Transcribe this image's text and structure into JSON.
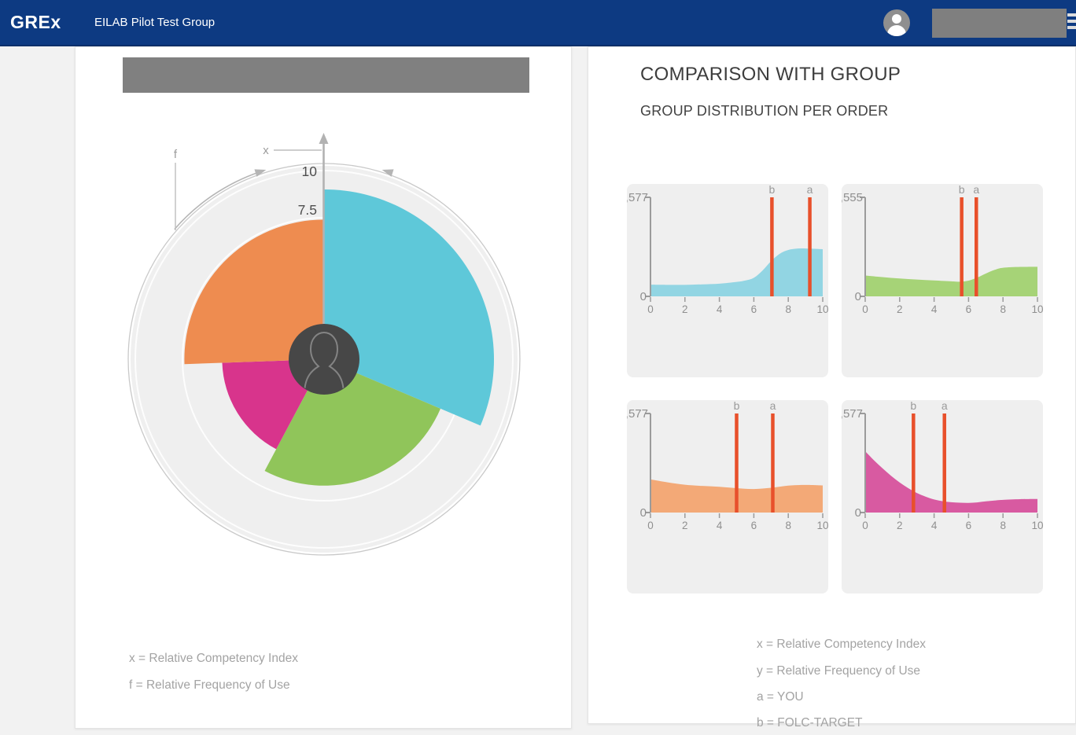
{
  "navbar": {
    "brand": "GREx",
    "group_name": "EILAB Pilot Test Group",
    "bg_color": "#0d3a82"
  },
  "left_panel": {
    "legend": [
      {
        "label": "x = Relative Competency Index"
      },
      {
        "label": "f = Relative Frequency of Use"
      }
    ]
  },
  "right_panel": {
    "title": "COMPARISON WITH GROUP",
    "subtitle": "GROUP DISTRIBUTION PER ORDER",
    "legend": [
      {
        "label": "x = Relative Competency Index"
      },
      {
        "label": "y = Relative Frequency of Use"
      },
      {
        "label": "a = YOU"
      },
      {
        "label": "b = FOLC-TARGET"
      }
    ]
  },
  "chart_data": [
    {
      "type": "polar-area",
      "name": "competency-rose",
      "axis": {
        "x_label": "x",
        "f_label": "f",
        "tick_labels": [
          "10",
          "7.5"
        ],
        "tick_values": [
          10,
          7.5
        ],
        "max": 10
      },
      "note": "radius = x (Relative Competency Index), angular width = f (Relative Frequency of Use)",
      "segments": [
        {
          "name": "cyan-order",
          "color": "#5ec8d9",
          "start_deg": 0,
          "end_deg": 113,
          "value": 9.0
        },
        {
          "name": "green-order",
          "color": "#90c55a",
          "start_deg": 113,
          "end_deg": 208,
          "value": 6.7
        },
        {
          "name": "magenta-order",
          "color": "#d8348c",
          "start_deg": 208,
          "end_deg": 268,
          "value": 5.4
        },
        {
          "name": "orange-order",
          "color": "#ee8c50",
          "start_deg": 268,
          "end_deg": 360,
          "value": 7.4
        }
      ],
      "colors": {
        "disc": "#efefef",
        "outer_ring": "#c9c9c9",
        "axis": "#b2b2b2",
        "tick_text": "#4f4f4f",
        "label_text": "#9c9c9c",
        "avatar_bg": "#474747",
        "avatar_stroke": "#848484"
      }
    },
    {
      "type": "area",
      "name": "distribution-cyan",
      "color": "#92d5e3",
      "marker_color": "#e8502b",
      "ymax": 577,
      "ymax_label": ",577",
      "y0_label": "0",
      "x_ticks": [
        0,
        2,
        4,
        6,
        8,
        10
      ],
      "points": [
        [
          0,
          68
        ],
        [
          1,
          67
        ],
        [
          2,
          67
        ],
        [
          3,
          70
        ],
        [
          4,
          74
        ],
        [
          5,
          84
        ],
        [
          5.5,
          92
        ],
        [
          6,
          108
        ],
        [
          6.5,
          150
        ],
        [
          7,
          205
        ],
        [
          7.5,
          248
        ],
        [
          8,
          270
        ],
        [
          8.5,
          278
        ],
        [
          9,
          279
        ],
        [
          10,
          275
        ]
      ],
      "markers": {
        "b": 7.05,
        "a": 9.25
      }
    },
    {
      "type": "area",
      "name": "distribution-green",
      "color": "#a6d377",
      "marker_color": "#e8502b",
      "ymax": 555,
      "ymax_label": ",555",
      "y0_label": "0",
      "x_ticks": [
        0,
        2,
        4,
        6,
        8,
        10
      ],
      "points": [
        [
          0,
          117
        ],
        [
          1,
          108
        ],
        [
          2,
          100
        ],
        [
          3,
          94
        ],
        [
          4,
          89
        ],
        [
          5,
          84
        ],
        [
          5.5,
          82
        ],
        [
          6,
          88
        ],
        [
          6.5,
          105
        ],
        [
          7,
          128
        ],
        [
          7.5,
          148
        ],
        [
          8,
          160
        ],
        [
          9,
          165
        ],
        [
          10,
          166
        ]
      ],
      "markers": {
        "b": 5.6,
        "a": 6.45
      }
    },
    {
      "type": "area",
      "name": "distribution-orange",
      "color": "#f3a977",
      "marker_color": "#e8502b",
      "ymax": 577,
      "ymax_label": ",577",
      "y0_label": "0",
      "x_ticks": [
        0,
        2,
        4,
        6,
        8,
        10
      ],
      "points": [
        [
          0,
          193
        ],
        [
          1,
          176
        ],
        [
          2,
          162
        ],
        [
          3,
          155
        ],
        [
          4,
          150
        ],
        [
          5,
          142
        ],
        [
          6,
          137
        ],
        [
          7,
          144
        ],
        [
          8,
          157
        ],
        [
          9,
          161
        ],
        [
          10,
          158
        ]
      ],
      "markers": {
        "b": 5.0,
        "a": 7.1
      }
    },
    {
      "type": "area",
      "name": "distribution-magenta",
      "color": "#d85aa1",
      "marker_color": "#e8502b",
      "ymax": 577,
      "ymax_label": ",577",
      "y0_label": "0",
      "x_ticks": [
        0,
        2,
        4,
        6,
        8,
        10
      ],
      "points": [
        [
          0,
          357
        ],
        [
          0.5,
          305
        ],
        [
          1,
          258
        ],
        [
          1.5,
          214
        ],
        [
          2,
          175
        ],
        [
          2.5,
          142
        ],
        [
          3,
          114
        ],
        [
          3.5,
          93
        ],
        [
          4,
          76
        ],
        [
          4.5,
          66
        ],
        [
          5,
          60
        ],
        [
          5.5,
          57
        ],
        [
          6,
          56
        ],
        [
          6.5,
          59
        ],
        [
          7,
          65
        ],
        [
          7.5,
          70
        ],
        [
          8,
          74
        ],
        [
          9,
          78
        ],
        [
          10,
          79
        ]
      ],
      "markers": {
        "b": 2.8,
        "a": 4.6
      }
    }
  ]
}
